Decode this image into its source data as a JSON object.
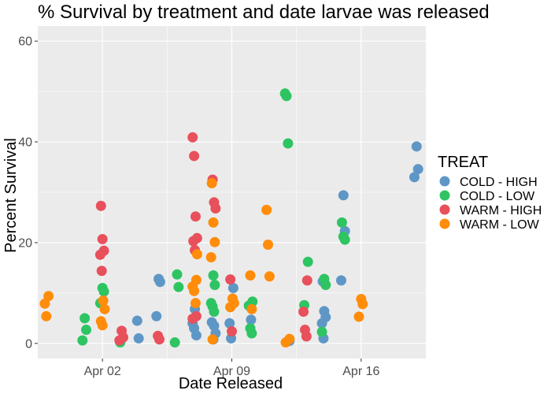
{
  "chart_data": {
    "type": "scatter",
    "title": "% Survival by treatment and date larvae was released",
    "xlabel": "Date Released",
    "ylabel": "Percent Survival",
    "x_axis": {
      "ticks": [
        {
          "date": "2025-04-02",
          "label": "Apr 02"
        },
        {
          "date": "2025-04-09",
          "label": "Apr 09"
        },
        {
          "date": "2025-04-16",
          "label": "Apr 16"
        }
      ],
      "range": [
        "2025-03-29T12:00",
        "2025-04-19T12:00"
      ]
    },
    "y_axis": {
      "ticks": [
        0,
        20,
        40,
        60
      ],
      "range": [
        -3,
        63
      ]
    },
    "grid": true,
    "legend": {
      "title": "TREAT",
      "position": "right"
    },
    "series": [
      {
        "name": "COLD - HIGH",
        "color": "#5E97C6",
        "points": [
          [
            "2025-04-04",
            4.5
          ],
          [
            "2025-04-04",
            1.0
          ],
          [
            "2025-04-05",
            12.8
          ],
          [
            "2025-04-05",
            12.2
          ],
          [
            "2025-04-05",
            5.4
          ],
          [
            "2025-04-07",
            6.8
          ],
          [
            "2025-04-07",
            1.6
          ],
          [
            "2025-04-07",
            4.0
          ],
          [
            "2025-04-07",
            3.0
          ],
          [
            "2025-04-08",
            3.5
          ],
          [
            "2025-04-08",
            2.0
          ],
          [
            "2025-04-08",
            4.2
          ],
          [
            "2025-04-08",
            0.8
          ],
          [
            "2025-04-09",
            11.0
          ],
          [
            "2025-04-09",
            4.0
          ],
          [
            "2025-04-09",
            1.0
          ],
          [
            "2025-04-10",
            4.7
          ],
          [
            "2025-04-12",
            0.5
          ],
          [
            "2025-04-14",
            12.3
          ],
          [
            "2025-04-14",
            6.4
          ],
          [
            "2025-04-14",
            5.2
          ],
          [
            "2025-04-14",
            4.0
          ],
          [
            "2025-04-14",
            1.0
          ],
          [
            "2025-04-15",
            29.4
          ],
          [
            "2025-04-15",
            22.3
          ],
          [
            "2025-04-15",
            12.5
          ],
          [
            "2025-04-19",
            39.1
          ],
          [
            "2025-04-19",
            34.6
          ],
          [
            "2025-04-19",
            33.0
          ]
        ]
      },
      {
        "name": "COLD - LOW",
        "color": "#2EC462",
        "points": [
          [
            "2025-04-01",
            5.0
          ],
          [
            "2025-04-01",
            2.7
          ],
          [
            "2025-04-01",
            0.6
          ],
          [
            "2025-04-02",
            11.0
          ],
          [
            "2025-04-02",
            10.3
          ],
          [
            "2025-04-02",
            8.0
          ],
          [
            "2025-04-03",
            0.2
          ],
          [
            "2025-04-06",
            13.7
          ],
          [
            "2025-04-06",
            11.2
          ],
          [
            "2025-04-06",
            0.2
          ],
          [
            "2025-04-08",
            13.5
          ],
          [
            "2025-04-08",
            11.6
          ],
          [
            "2025-04-08",
            8.0
          ],
          [
            "2025-04-08",
            7.3
          ],
          [
            "2025-04-08",
            6.3
          ],
          [
            "2025-04-10",
            8.3
          ],
          [
            "2025-04-10",
            7.5
          ],
          [
            "2025-04-10",
            3.0
          ],
          [
            "2025-04-10",
            2.0
          ],
          [
            "2025-04-12",
            49.6
          ],
          [
            "2025-04-12",
            49.1
          ],
          [
            "2025-04-12",
            39.7
          ],
          [
            "2025-04-13",
            16.2
          ],
          [
            "2025-04-13",
            7.6
          ],
          [
            "2025-04-14",
            12.8
          ],
          [
            "2025-04-14",
            11.6
          ],
          [
            "2025-04-14",
            2.3
          ],
          [
            "2025-04-15",
            24.0
          ],
          [
            "2025-04-15",
            21.2
          ],
          [
            "2025-04-15",
            20.6
          ]
        ]
      },
      {
        "name": "WARM - HIGH",
        "color": "#E8505B",
        "points": [
          [
            "2025-04-02",
            27.3
          ],
          [
            "2025-04-02",
            20.7
          ],
          [
            "2025-04-02",
            18.4
          ],
          [
            "2025-04-02",
            17.6
          ],
          [
            "2025-04-02",
            14.4
          ],
          [
            "2025-04-03",
            2.5
          ],
          [
            "2025-04-03",
            1.2
          ],
          [
            "2025-04-03",
            0.6
          ],
          [
            "2025-04-05",
            1.5
          ],
          [
            "2025-04-05",
            0.8
          ],
          [
            "2025-04-07",
            40.9
          ],
          [
            "2025-04-07",
            37.2
          ],
          [
            "2025-04-07",
            25.2
          ],
          [
            "2025-04-07",
            20.9
          ],
          [
            "2025-04-07",
            20.3
          ],
          [
            "2025-04-07",
            18.5
          ],
          [
            "2025-04-07",
            5.4
          ],
          [
            "2025-04-07",
            4.9
          ],
          [
            "2025-04-08",
            32.5
          ],
          [
            "2025-04-08",
            28.0
          ],
          [
            "2025-04-08",
            26.8
          ],
          [
            "2025-04-09",
            12.7
          ],
          [
            "2025-04-09",
            2.4
          ],
          [
            "2025-04-13",
            12.5
          ],
          [
            "2025-04-13",
            6.3
          ],
          [
            "2025-04-13",
            2.7
          ],
          [
            "2025-04-13",
            1.4
          ]
        ]
      },
      {
        "name": "WARM - LOW",
        "color": "#FF8C0A",
        "points": [
          [
            "2025-03-30",
            9.4
          ],
          [
            "2025-03-30",
            7.9
          ],
          [
            "2025-03-30",
            5.4
          ],
          [
            "2025-04-02",
            8.5
          ],
          [
            "2025-04-02",
            6.8
          ],
          [
            "2025-04-02",
            4.4
          ],
          [
            "2025-04-02",
            3.6
          ],
          [
            "2025-04-07",
            12.6
          ],
          [
            "2025-04-07",
            11.3
          ],
          [
            "2025-04-07",
            10.4
          ],
          [
            "2025-04-07",
            8.0
          ],
          [
            "2025-04-07",
            17.7
          ],
          [
            "2025-04-08",
            31.8
          ],
          [
            "2025-04-08",
            24.0
          ],
          [
            "2025-04-08",
            20.1
          ],
          [
            "2025-04-08",
            17.1
          ],
          [
            "2025-04-08",
            0.8
          ],
          [
            "2025-04-09",
            8.9
          ],
          [
            "2025-04-09",
            8.0
          ],
          [
            "2025-04-09",
            7.2
          ],
          [
            "2025-04-10",
            13.5
          ],
          [
            "2025-04-10",
            6.8
          ],
          [
            "2025-04-11",
            26.5
          ],
          [
            "2025-04-11",
            19.6
          ],
          [
            "2025-04-11",
            13.3
          ],
          [
            "2025-04-12",
            0.9
          ],
          [
            "2025-04-12",
            0.2
          ],
          [
            "2025-04-16",
            8.8
          ],
          [
            "2025-04-16",
            7.8
          ],
          [
            "2025-04-16",
            5.3
          ]
        ]
      }
    ]
  }
}
